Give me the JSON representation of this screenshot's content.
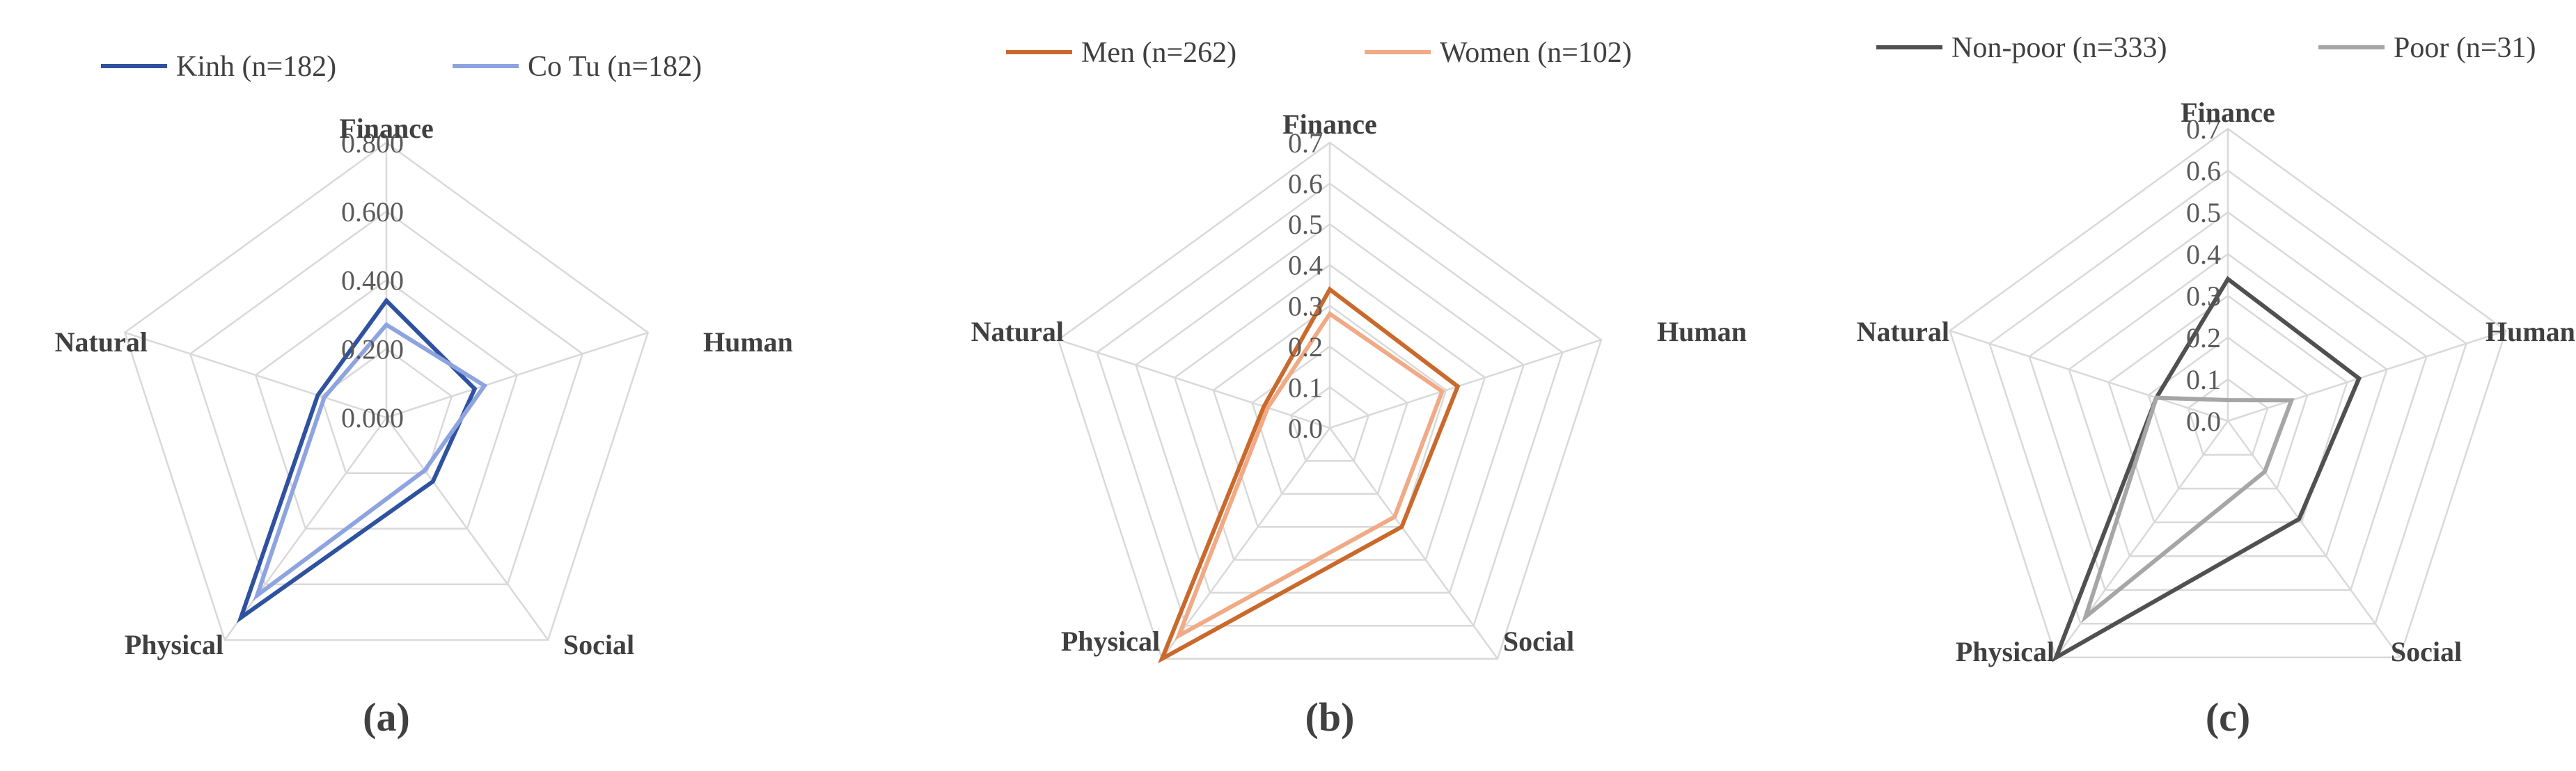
{
  "chart_data": [
    {
      "type": "radar",
      "panel_label": "(a)",
      "axes": [
        "Finance",
        "Human",
        "Social",
        "Physical",
        "Natural"
      ],
      "tick_labels": [
        "0.000",
        "0.200",
        "0.400",
        "0.600",
        "0.800"
      ],
      "rmax": 0.8,
      "legend_position": "top",
      "series": [
        {
          "name": "Kinh (n=182)",
          "color": "#2f52a0",
          "values": [
            0.34,
            0.27,
            0.23,
            0.72,
            0.21
          ]
        },
        {
          "name": "Co Tu (n=182)",
          "color": "#8ea4e0",
          "values": [
            0.27,
            0.3,
            0.19,
            0.64,
            0.19
          ]
        }
      ]
    },
    {
      "type": "radar",
      "panel_label": "(b)",
      "axes": [
        "Finance",
        "Human",
        "Social",
        "Physical",
        "Natural"
      ],
      "tick_labels": [
        "0.0",
        "0.1",
        "0.2",
        "0.3",
        "0.4",
        "0.5",
        "0.6",
        "0.7"
      ],
      "rmax": 0.7,
      "legend_position": "top",
      "series": [
        {
          "name": "Men (n=262)",
          "color": "#c96a2c",
          "values": [
            0.34,
            0.33,
            0.3,
            0.7,
            0.17
          ]
        },
        {
          "name": "Women (n=102)",
          "color": "#f0aa85",
          "values": [
            0.28,
            0.29,
            0.27,
            0.63,
            0.16
          ]
        }
      ]
    },
    {
      "type": "radar",
      "panel_label": "(c)",
      "axes": [
        "Finance",
        "Human",
        "Social",
        "Physical",
        "Natural"
      ],
      "tick_labels": [
        "0.0",
        "0.1",
        "0.2",
        "0.3",
        "0.4",
        "0.5",
        "0.6",
        "0.7"
      ],
      "rmax": 0.7,
      "legend_position": "top",
      "series": [
        {
          "name": "Non-poor (n=333)",
          "color": "#505050",
          "values": [
            0.34,
            0.33,
            0.29,
            0.7,
            0.18
          ]
        },
        {
          "name": "Poor (n=31)",
          "color": "#a6a6a6",
          "values": [
            0.05,
            0.16,
            0.15,
            0.58,
            0.18
          ]
        }
      ]
    }
  ]
}
